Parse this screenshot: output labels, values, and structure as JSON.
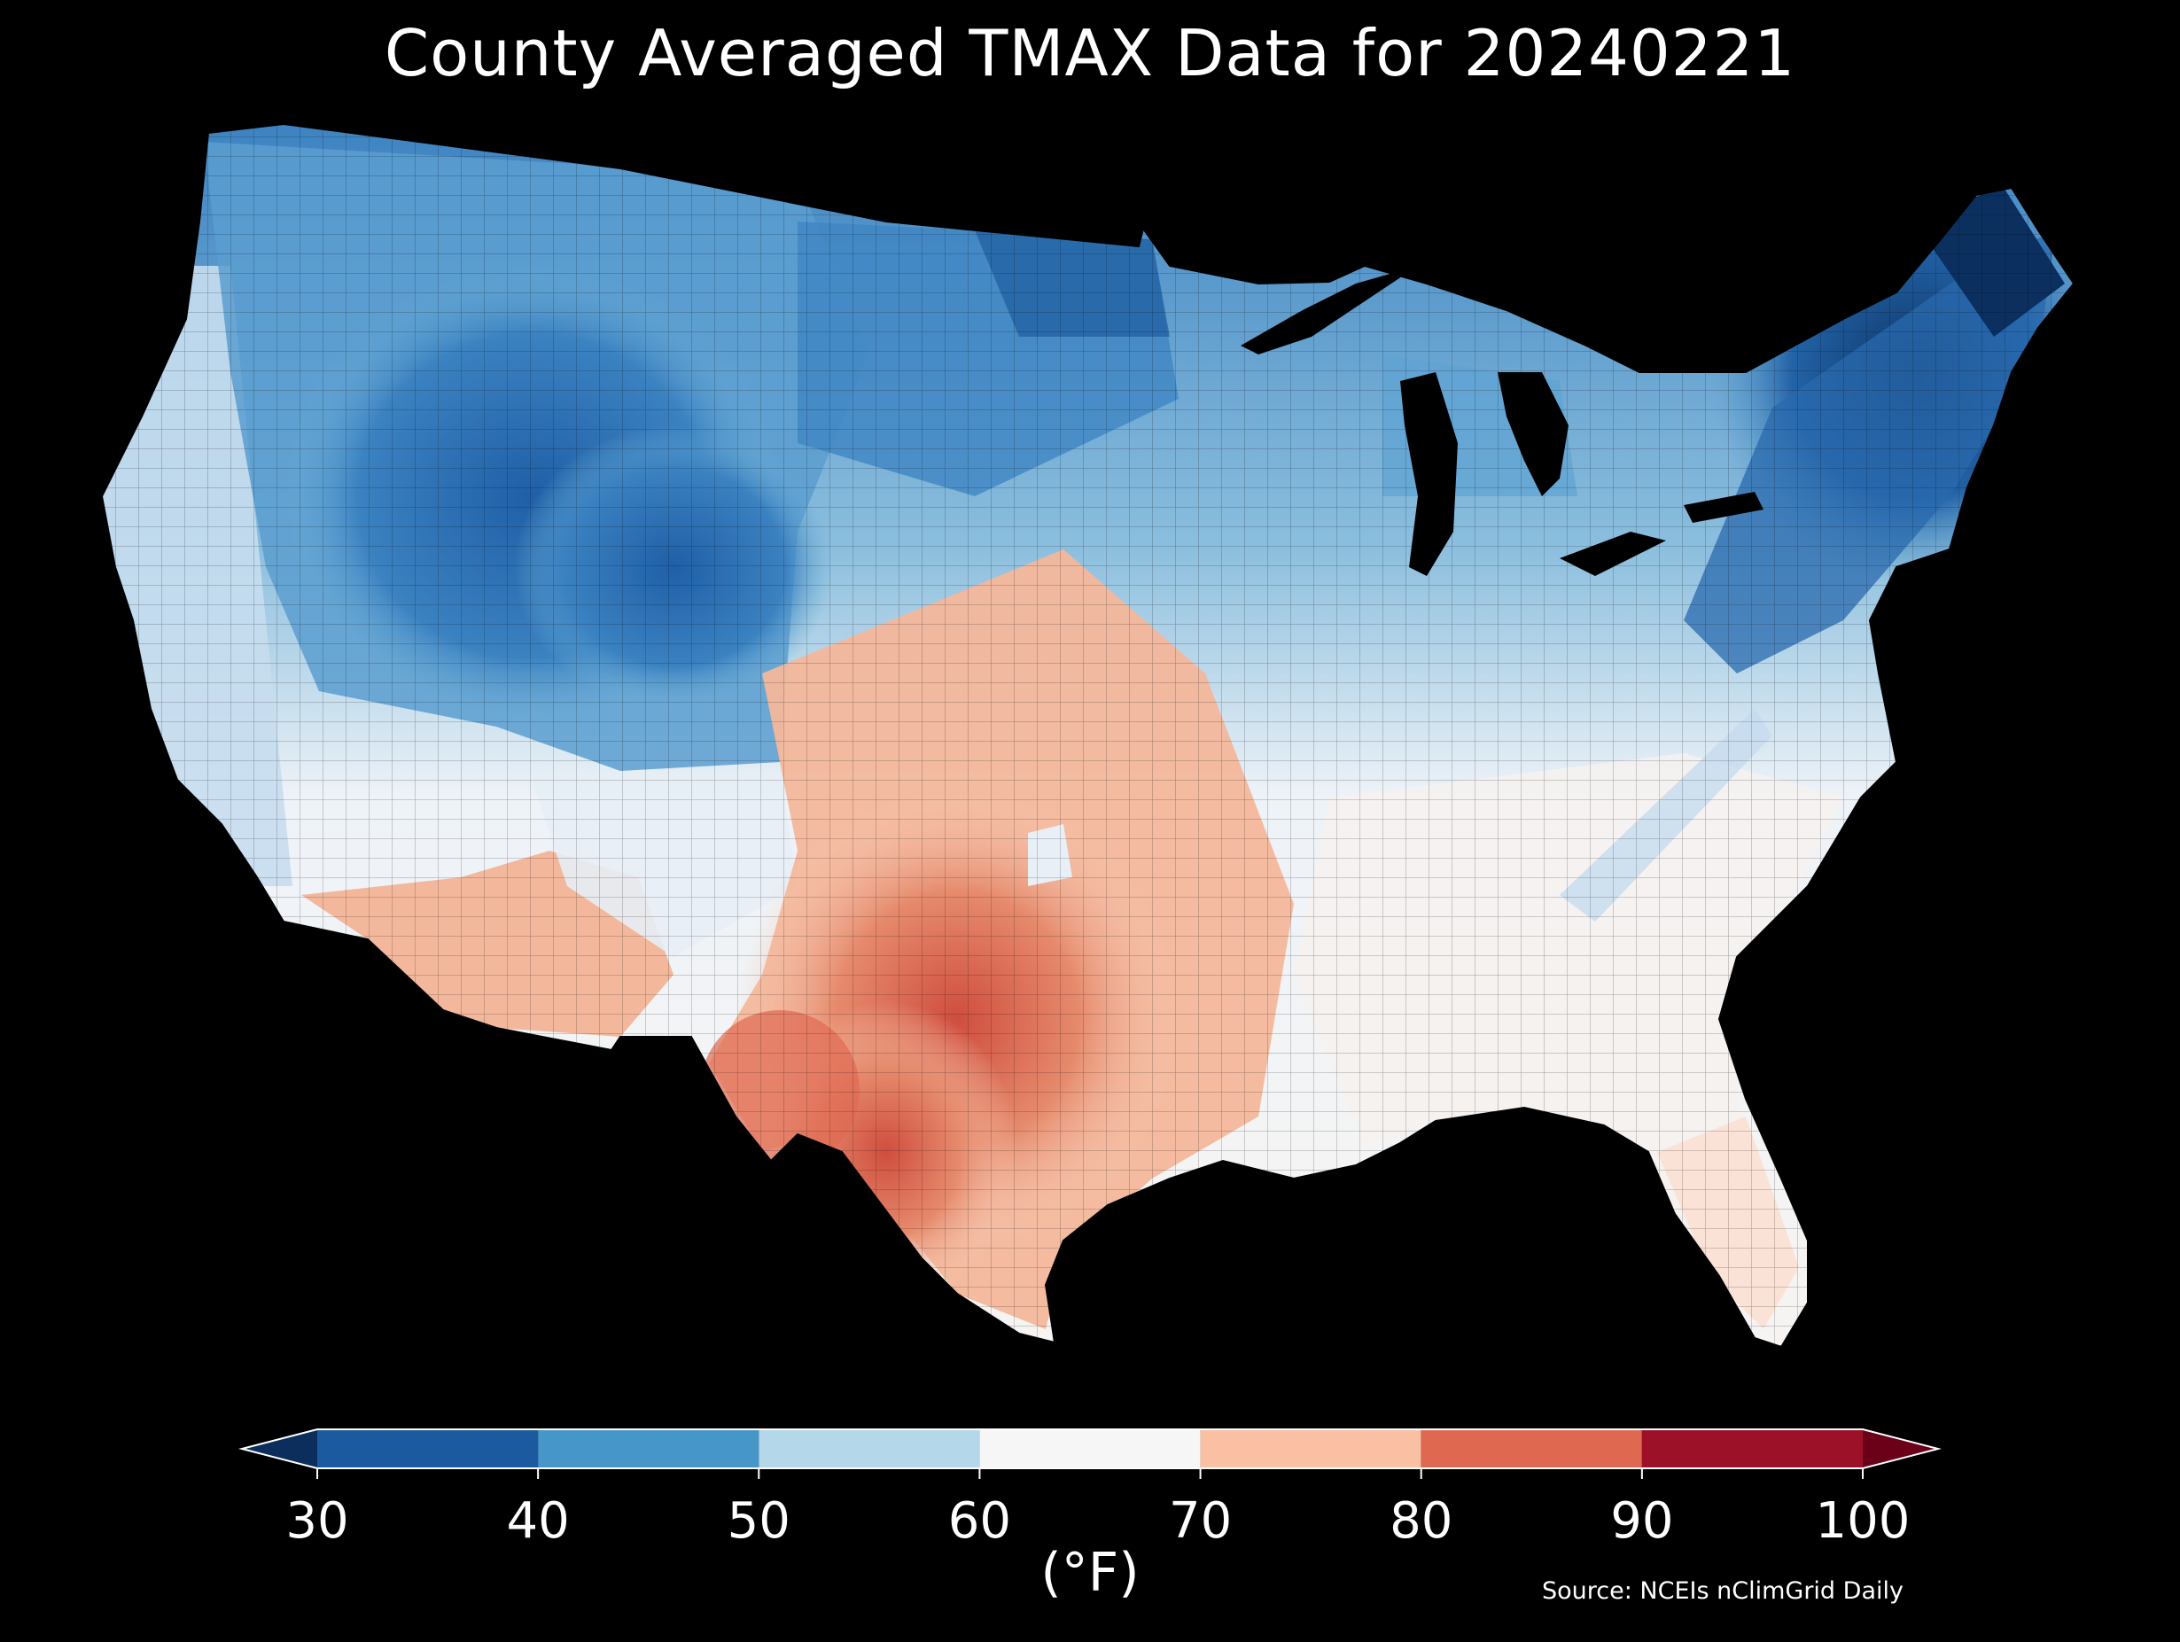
{
  "title": "County Averaged TMAX Data for 20240221",
  "colorbar": {
    "label": "(°F)",
    "ticks": [
      "30",
      "40",
      "50",
      "60",
      "70",
      "80",
      "90",
      "100"
    ],
    "bins": [
      {
        "from": 30,
        "to": 40,
        "color": "#1c5aa0"
      },
      {
        "from": 40,
        "to": 50,
        "color": "#4796c8"
      },
      {
        "from": 50,
        "to": 60,
        "color": "#b4d7ea"
      },
      {
        "from": 60,
        "to": 70,
        "color": "#f6f6f6"
      },
      {
        "from": 70,
        "to": 80,
        "color": "#f9c0a4"
      },
      {
        "from": 80,
        "to": 90,
        "color": "#de6850"
      },
      {
        "from": 90,
        "to": 100,
        "color": "#9c1127"
      }
    ],
    "under_color": "#0b2e5c",
    "over_color": "#6b0019"
  },
  "source": "Source: NCEIs nClimGrid Daily",
  "map": {
    "background": "#000000",
    "region": "contiguous United States",
    "regions": [
      {
        "name": "northern-rockies-plains-cold",
        "color": "#2f73b5"
      },
      {
        "name": "northeast-cold",
        "color": "#123f75"
      },
      {
        "name": "west-coast-cool",
        "color": "#9ecae1"
      },
      {
        "name": "great-basin-cool",
        "color": "#6baed6"
      },
      {
        "name": "southwest-warm",
        "color": "#f4a582"
      },
      {
        "name": "texas-hot",
        "color": "#d6604d"
      },
      {
        "name": "southeast-mild",
        "color": "#f7f7f7"
      },
      {
        "name": "midwest-cool",
        "color": "#c6dbef"
      }
    ]
  }
}
